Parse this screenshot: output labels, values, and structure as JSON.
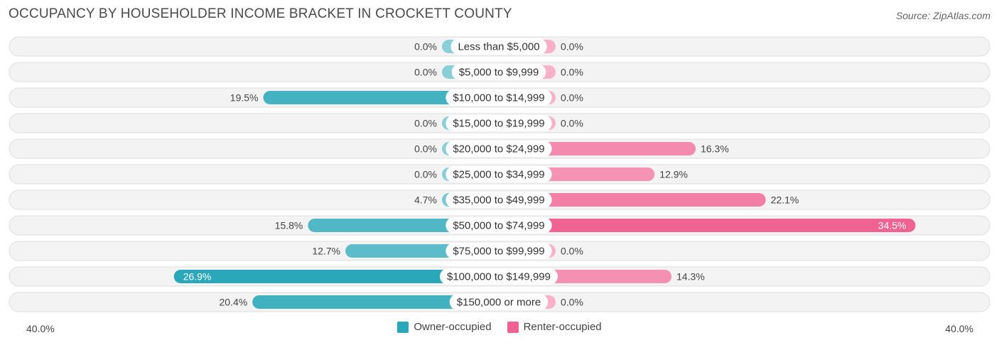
{
  "title": "OCCUPANCY BY HOUSEHOLDER INCOME BRACKET IN CROCKETT COUNTY",
  "source": "Source: ZipAtlas.com",
  "axis": {
    "left_label": "40.0%",
    "right_label": "40.0%"
  },
  "legend": [
    {
      "label": "Owner-occupied",
      "color": "#2aa7b8"
    },
    {
      "label": "Renter-occupied",
      "color": "#f06292"
    }
  ],
  "chart_data": {
    "type": "bar",
    "orientation": "diverging-horizontal",
    "title": "OCCUPANCY BY HOUSEHOLDER INCOME BRACKET IN CROCKETT COUNTY",
    "categories": [
      "Less than $5,000",
      "$5,000 to $9,999",
      "$10,000 to $14,999",
      "$15,000 to $19,999",
      "$20,000 to $24,999",
      "$25,000 to $34,999",
      "$35,000 to $49,999",
      "$50,000 to $74,999",
      "$75,000 to $99,999",
      "$100,000 to $149,999",
      "$150,000 or more"
    ],
    "series": [
      {
        "name": "Owner-occupied",
        "color": "#2aa7b8",
        "values": [
          0.0,
          0.0,
          19.5,
          0.0,
          0.0,
          0.0,
          4.7,
          15.8,
          12.7,
          26.9,
          20.4
        ]
      },
      {
        "name": "Renter-occupied",
        "color": "#f06292",
        "values": [
          0.0,
          0.0,
          0.0,
          0.0,
          16.3,
          12.9,
          22.1,
          34.5,
          0.0,
          14.3,
          0.0
        ]
      }
    ],
    "value_labels": {
      "Owner-occupied": [
        "0.0%",
        "0.0%",
        "19.5%",
        "0.0%",
        "0.0%",
        "0.0%",
        "4.7%",
        "15.8%",
        "12.7%",
        "26.9%",
        "20.4%"
      ],
      "Renter-occupied": [
        "0.0%",
        "0.0%",
        "0.0%",
        "0.0%",
        "16.3%",
        "12.9%",
        "22.1%",
        "34.5%",
        "0.0%",
        "14.3%",
        "0.0%"
      ]
    },
    "xlim": [
      -40,
      40
    ],
    "unit": "%",
    "grid": false,
    "legend_position": "bottom-center"
  }
}
